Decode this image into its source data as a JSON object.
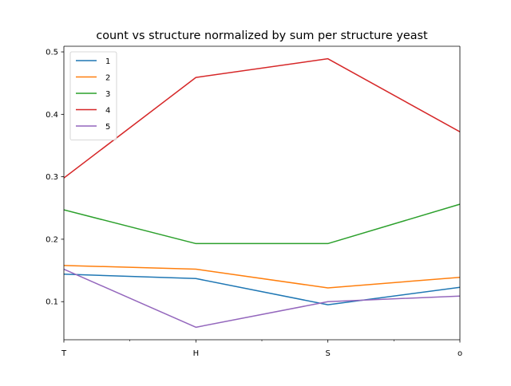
{
  "chart_data": {
    "type": "line",
    "title": "count vs structure normalized by sum per structure yeast",
    "xlabel": "",
    "ylabel": "",
    "categories": [
      "T",
      "H",
      "S",
      "o"
    ],
    "ylim": [
      0.039,
      0.509
    ],
    "yticks": [
      0.1,
      0.2,
      0.3,
      0.4,
      0.5
    ],
    "ytick_labels": [
      "0.1",
      "0.2",
      "0.3",
      "0.4",
      "0.5"
    ],
    "grid": false,
    "legend_position": "top-left",
    "series": [
      {
        "name": "1",
        "color": "#1f77b4",
        "values": [
          0.144,
          0.137,
          0.095,
          0.123
        ]
      },
      {
        "name": "2",
        "color": "#ff7f0e",
        "values": [
          0.158,
          0.152,
          0.122,
          0.139
        ]
      },
      {
        "name": "3",
        "color": "#2ca02c",
        "values": [
          0.247,
          0.193,
          0.193,
          0.256
        ]
      },
      {
        "name": "4",
        "color": "#d62728",
        "values": [
          0.298,
          0.459,
          0.489,
          0.372
        ]
      },
      {
        "name": "5",
        "color": "#9467bd",
        "values": [
          0.152,
          0.059,
          0.1,
          0.109
        ]
      }
    ]
  }
}
